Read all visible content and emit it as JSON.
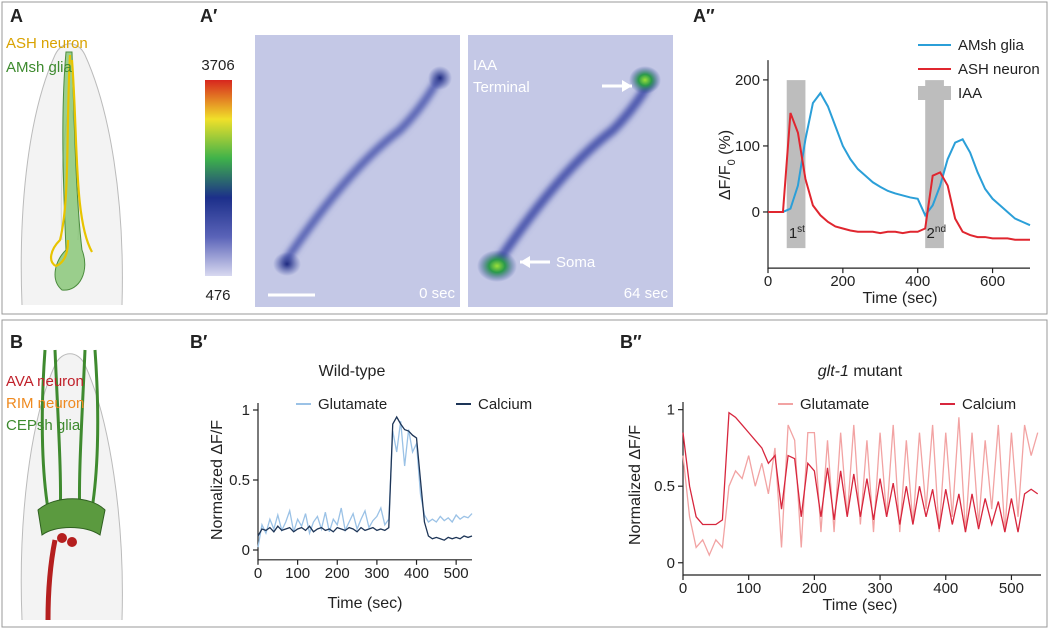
{
  "panels": {
    "a": "A",
    "a1": "A′",
    "a2": "A″",
    "b": "B",
    "b1": "B′",
    "b2": "B″"
  },
  "diagram_a": {
    "labels": [
      "ASH neuron",
      "AMsh glia"
    ]
  },
  "colorbar": {
    "max": 3706,
    "min": 476
  },
  "images": {
    "terminal": [
      "IAA",
      "Terminal"
    ],
    "soma": "Soma",
    "left_time": "0 sec",
    "right_time": "64 sec"
  },
  "diagram_b": {
    "labels": [
      "AVA neuron",
      "RIM neuron",
      "CEPsh glia"
    ]
  },
  "chart_data": [
    {
      "type": "line",
      "xlabel": "Time (sec)",
      "ylabel": {
        "main": "ΔF/F",
        "sub": "0",
        "unit": " (%)"
      },
      "x": [
        0,
        20,
        40,
        60,
        80,
        100,
        120,
        140,
        160,
        180,
        200,
        220,
        240,
        260,
        280,
        300,
        320,
        340,
        360,
        380,
        400,
        420,
        440,
        460,
        480,
        500,
        520,
        540,
        560,
        580,
        600,
        620,
        640,
        660,
        680,
        700
      ],
      "series": [
        {
          "name": "AMsh glia",
          "color": "#2b9fd8",
          "values": [
            0,
            0,
            0,
            5,
            40,
            110,
            165,
            180,
            160,
            130,
            100,
            80,
            65,
            55,
            45,
            38,
            32,
            28,
            25,
            22,
            20,
            -5,
            10,
            40,
            80,
            105,
            110,
            90,
            60,
            35,
            20,
            10,
            0,
            -10,
            -15,
            -20
          ]
        },
        {
          "name": "ASH neuron",
          "color": "#e0262f",
          "values": [
            0,
            0,
            0,
            150,
            120,
            50,
            10,
            -5,
            -15,
            -22,
            -25,
            -28,
            -30,
            -30,
            -30,
            -32,
            -30,
            -30,
            -32,
            -30,
            -30,
            -25,
            55,
            60,
            40,
            -10,
            -30,
            -35,
            -38,
            -38,
            -40,
            -40,
            -40,
            -42,
            -42,
            -42
          ]
        }
      ],
      "stimulus": {
        "name": "IAA",
        "color": "#bdbdbd",
        "ranges": [
          [
            50,
            100
          ],
          [
            420,
            470
          ]
        ]
      },
      "annotations": [
        {
          "base": "1",
          "sup": "st"
        },
        {
          "base": "2",
          "sup": "nd"
        }
      ],
      "xlim": [
        0,
        700
      ],
      "ylim": [
        -85,
        230
      ],
      "xticks": [
        0,
        200,
        400,
        600
      ],
      "yticks": [
        0,
        100,
        200
      ]
    },
    {
      "type": "line",
      "title": "Wild-type",
      "xlabel": "Time (sec)",
      "ylabel": "Normalized ΔF/F",
      "x": [
        0,
        10,
        20,
        30,
        40,
        50,
        60,
        70,
        80,
        90,
        100,
        110,
        120,
        130,
        140,
        150,
        160,
        170,
        180,
        190,
        200,
        210,
        220,
        230,
        240,
        250,
        260,
        270,
        280,
        290,
        300,
        310,
        320,
        330,
        340,
        350,
        360,
        370,
        380,
        390,
        400,
        410,
        420,
        430,
        440,
        450,
        460,
        470,
        480,
        490,
        500,
        510,
        520,
        530,
        540
      ],
      "series": [
        {
          "name": "Glutamate",
          "color": "#9bc2e6",
          "values": [
            0.02,
            0.18,
            0.12,
            0.22,
            0.15,
            0.25,
            0.14,
            0.2,
            0.28,
            0.13,
            0.22,
            0.17,
            0.26,
            0.12,
            0.2,
            0.24,
            0.15,
            0.27,
            0.13,
            0.22,
            0.18,
            0.3,
            0.14,
            0.2,
            0.26,
            0.15,
            0.22,
            0.28,
            0.16,
            0.21,
            0.24,
            0.3,
            0.18,
            0.22,
            0.85,
            0.7,
            0.92,
            0.6,
            0.86,
            0.7,
            0.76,
            0.4,
            0.25,
            0.2,
            0.22,
            0.2,
            0.24,
            0.21,
            0.23,
            0.2,
            0.25,
            0.22,
            0.24,
            0.23,
            0.26
          ]
        },
        {
          "name": "Calcium",
          "color": "#1d3557",
          "values": [
            0.1,
            0.15,
            0.14,
            0.16,
            0.13,
            0.17,
            0.14,
            0.15,
            0.16,
            0.13,
            0.15,
            0.16,
            0.14,
            0.17,
            0.13,
            0.15,
            0.16,
            0.14,
            0.15,
            0.13,
            0.16,
            0.15,
            0.14,
            0.16,
            0.15,
            0.13,
            0.16,
            0.14,
            0.15,
            0.16,
            0.14,
            0.15,
            0.14,
            0.16,
            0.9,
            0.95,
            0.9,
            0.86,
            0.85,
            0.82,
            0.8,
            0.5,
            0.2,
            0.1,
            0.08,
            0.09,
            0.08,
            0.07,
            0.09,
            0.08,
            0.09,
            0.08,
            0.1,
            0.09,
            0.1
          ]
        }
      ],
      "xlim": [
        0,
        540
      ],
      "ylim": [
        -0.07,
        1.05
      ],
      "xticks": [
        0,
        100,
        200,
        300,
        400,
        500
      ],
      "yticks": [
        0,
        0.5,
        1
      ]
    },
    {
      "type": "line",
      "title": {
        "italic": "glt-1",
        "rest": " mutant"
      },
      "xlabel": "Time (sec)",
      "ylabel": "Normalized ΔF/F",
      "x": [
        0,
        10,
        20,
        30,
        40,
        50,
        60,
        70,
        80,
        90,
        100,
        110,
        120,
        130,
        140,
        150,
        160,
        170,
        180,
        190,
        200,
        210,
        220,
        230,
        240,
        250,
        260,
        270,
        280,
        290,
        300,
        310,
        320,
        330,
        340,
        350,
        360,
        370,
        380,
        390,
        400,
        410,
        420,
        430,
        440,
        450,
        460,
        470,
        480,
        490,
        500,
        510,
        520,
        530,
        540
      ],
      "series": [
        {
          "name": "Glutamate",
          "color": "#f2a3a3",
          "values": [
            0.7,
            0.3,
            0.1,
            0.15,
            0.05,
            0.15,
            0.1,
            0.5,
            0.6,
            0.55,
            0.7,
            0.5,
            0.65,
            0.45,
            0.75,
            0.1,
            0.9,
            0.8,
            0.1,
            0.85,
            0.85,
            0.2,
            0.8,
            0.2,
            0.85,
            0.3,
            0.9,
            0.25,
            0.8,
            0.2,
            0.85,
            0.3,
            0.9,
            0.2,
            0.8,
            0.25,
            0.85,
            0.35,
            0.9,
            0.2,
            0.85,
            0.3,
            0.95,
            0.2,
            0.85,
            0.25,
            0.8,
            0.35,
            0.9,
            0.2,
            0.85,
            0.3,
            0.9,
            0.7,
            0.85
          ]
        },
        {
          "name": "Calcium",
          "color": "#d7263d",
          "values": [
            0.85,
            0.5,
            0.3,
            0.25,
            0.25,
            0.25,
            0.28,
            0.98,
            0.95,
            0.9,
            0.85,
            0.8,
            0.75,
            0.65,
            0.7,
            0.35,
            0.7,
            0.68,
            0.3,
            0.65,
            0.6,
            0.3,
            0.62,
            0.28,
            0.6,
            0.3,
            0.58,
            0.3,
            0.55,
            0.28,
            0.55,
            0.3,
            0.52,
            0.25,
            0.5,
            0.25,
            0.5,
            0.3,
            0.48,
            0.22,
            0.48,
            0.25,
            0.45,
            0.2,
            0.45,
            0.22,
            0.42,
            0.25,
            0.4,
            0.2,
            0.42,
            0.2,
            0.45,
            0.48,
            0.45
          ]
        }
      ],
      "xlim": [
        0,
        545
      ],
      "ylim": [
        -0.08,
        1.05
      ],
      "xticks": [
        0,
        100,
        200,
        300,
        400,
        500
      ],
      "yticks": [
        0,
        0.5,
        1
      ]
    }
  ]
}
